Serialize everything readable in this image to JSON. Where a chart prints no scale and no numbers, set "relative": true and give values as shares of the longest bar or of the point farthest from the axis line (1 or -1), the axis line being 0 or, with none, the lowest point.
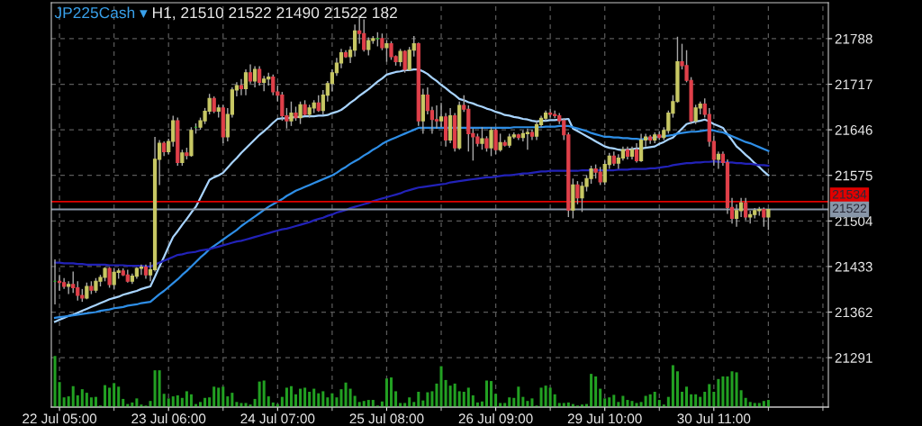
{
  "chart_data": [
    {
      "type": "candlestick",
      "title": "JP225Cash ▾ H1, 21510 21522 21490 21522 182",
      "categories": [
        null,
        "22 Jul 05:00",
        null,
        null,
        null,
        null,
        null,
        null,
        null,
        null,
        null,
        null,
        null,
        null,
        null,
        null,
        null,
        null,
        null,
        null,
        null,
        null,
        null,
        null,
        null,
        "23 Jul 06:00",
        null,
        null,
        null,
        null,
        null,
        null,
        null,
        null,
        null,
        null,
        null,
        null,
        null,
        null,
        null,
        null,
        null,
        null,
        null,
        null,
        null,
        null,
        null,
        "24 Jul 07:00",
        null,
        null,
        null,
        null,
        null,
        null,
        null,
        null,
        null,
        null,
        null,
        null,
        null,
        null,
        null,
        null,
        null,
        null,
        null,
        null,
        null,
        null,
        null,
        "25 Jul 08:00",
        null,
        null,
        null,
        null,
        null,
        null,
        null,
        null,
        null,
        null,
        null,
        null,
        null,
        null,
        null,
        null,
        null,
        null,
        null,
        null,
        null,
        null,
        null,
        "26 Jul 09:00",
        null,
        null,
        null,
        null,
        null,
        null,
        null,
        null,
        null,
        null,
        null,
        null,
        null,
        null,
        null,
        null,
        null,
        null,
        null,
        null,
        null,
        null,
        null,
        "29 Jul 10:00",
        null,
        null,
        null,
        null,
        null,
        null,
        null,
        null,
        null,
        null,
        null,
        null,
        null,
        null,
        null,
        null,
        null,
        null,
        null,
        null,
        null,
        null,
        null,
        "30 Jul 11:00",
        null,
        null,
        null,
        null,
        null,
        null,
        null,
        null,
        null,
        null,
        null,
        null
      ],
      "ohlc": [
        [
          21410,
          21444,
          21374,
          21410
        ],
        [
          21410,
          21420,
          21395,
          21408
        ],
        [
          21408,
          21415,
          21398,
          21402
        ],
        [
          21402,
          21410,
          21390,
          21405
        ],
        [
          21405,
          21425,
          21392,
          21400
        ],
        [
          21400,
          21410,
          21380,
          21388
        ],
        [
          21388,
          21398,
          21378,
          21384
        ],
        [
          21384,
          21408,
          21382,
          21402
        ],
        [
          21402,
          21410,
          21390,
          21396
        ],
        [
          21396,
          21415,
          21392,
          21410
        ],
        [
          21410,
          21420,
          21402,
          21416
        ],
        [
          21416,
          21432,
          21410,
          21430
        ],
        [
          21430,
          21432,
          21400,
          21405
        ],
        [
          21405,
          21430,
          21398,
          21424
        ],
        [
          21424,
          21430,
          21414,
          21426
        ],
        [
          21426,
          21430,
          21418,
          21420
        ],
        [
          21420,
          21428,
          21408,
          21410
        ],
        [
          21410,
          21422,
          21406,
          21418
        ],
        [
          21418,
          21432,
          21414,
          21430
        ],
        [
          21430,
          21436,
          21420,
          21432
        ],
        [
          21432,
          21436,
          21414,
          21420
        ],
        [
          21420,
          21440,
          21410,
          21428
        ],
        [
          21428,
          21635,
          21425,
          21600
        ],
        [
          21600,
          21630,
          21560,
          21625
        ],
        [
          21625,
          21628,
          21605,
          21612
        ],
        [
          21612,
          21632,
          21608,
          21628
        ],
        [
          21628,
          21668,
          21620,
          21660
        ],
        [
          21660,
          21665,
          21590,
          21595
        ],
        [
          21595,
          21615,
          21590,
          21610
        ],
        [
          21610,
          21618,
          21600,
          21606
        ],
        [
          21606,
          21650,
          21604,
          21645
        ],
        [
          21650,
          21656,
          21640,
          21650
        ],
        [
          21650,
          21665,
          21646,
          21660
        ],
        [
          21660,
          21680,
          21655,
          21675
        ],
        [
          21675,
          21702,
          21670,
          21695
        ],
        [
          21695,
          21698,
          21672,
          21675
        ],
        [
          21675,
          21685,
          21665,
          21680
        ],
        [
          21680,
          21685,
          21625,
          21635
        ],
        [
          21635,
          21680,
          21628,
          21670
        ],
        [
          21670,
          21712,
          21665,
          21708
        ],
        [
          21708,
          21720,
          21698,
          21715
        ],
        [
          21715,
          21725,
          21700,
          21710
        ],
        [
          21710,
          21740,
          21700,
          21735
        ],
        [
          21735,
          21748,
          21718,
          21722
        ],
        [
          21722,
          21745,
          21712,
          21740
        ],
        [
          21740,
          21745,
          21715,
          21720
        ],
        [
          21720,
          21730,
          21706,
          21725
        ],
        [
          21725,
          21735,
          21715,
          21728
        ],
        [
          21728,
          21732,
          21700,
          21705
        ],
        [
          21705,
          21715,
          21690,
          21700
        ],
        [
          21700,
          21705,
          21660,
          21668
        ],
        [
          21668,
          21680,
          21648,
          21660
        ],
        [
          21660,
          21690,
          21652,
          21672
        ],
        [
          21672,
          21682,
          21660,
          21665
        ],
        [
          21665,
          21690,
          21655,
          21685
        ],
        [
          21685,
          21692,
          21668,
          21670
        ],
        [
          21670,
          21685,
          21665,
          21680
        ],
        [
          21680,
          21692,
          21672,
          21688
        ],
        [
          21688,
          21700,
          21674,
          21676
        ],
        [
          21676,
          21708,
          21670,
          21700
        ],
        [
          21700,
          21722,
          21690,
          21718
        ],
        [
          21718,
          21740,
          21706,
          21735
        ],
        [
          21735,
          21758,
          21730,
          21750
        ],
        [
          21750,
          21772,
          21742,
          21766
        ],
        [
          21766,
          21770,
          21758,
          21760
        ],
        [
          21760,
          21776,
          21750,
          21770
        ],
        [
          21770,
          21810,
          21760,
          21800
        ],
        [
          21800,
          21824,
          21780,
          21796
        ],
        [
          21796,
          21818,
          21768,
          21771
        ],
        [
          21771,
          21790,
          21762,
          21785
        ],
        [
          21785,
          21792,
          21780,
          21788
        ],
        [
          21788,
          21798,
          21776,
          21788
        ],
        [
          21788,
          21796,
          21770,
          21774
        ],
        [
          21774,
          21786,
          21752,
          21780
        ],
        [
          21780,
          21784,
          21755,
          21760
        ],
        [
          21760,
          21762,
          21746,
          21752
        ],
        [
          21752,
          21772,
          21745,
          21768
        ],
        [
          21768,
          21770,
          21735,
          21740
        ],
        [
          21740,
          21775,
          21738,
          21770
        ],
        [
          21770,
          21792,
          21760,
          21780
        ],
        [
          21780,
          21782,
          21652,
          21660
        ],
        [
          21660,
          21710,
          21640,
          21700
        ],
        [
          21700,
          21712,
          21670,
          21676
        ],
        [
          21676,
          21682,
          21640,
          21662
        ],
        [
          21662,
          21684,
          21648,
          21660
        ],
        [
          21660,
          21688,
          21650,
          21666
        ],
        [
          21666,
          21672,
          21620,
          21630
        ],
        [
          21630,
          21680,
          21625,
          21668
        ],
        [
          21668,
          21672,
          21612,
          21618
        ],
        [
          21618,
          21690,
          21615,
          21684
        ],
        [
          21684,
          21700,
          21674,
          21678
        ],
        [
          21678,
          21684,
          21612,
          21640
        ],
        [
          21640,
          21648,
          21598,
          21635
        ],
        [
          21635,
          21640,
          21620,
          21625
        ],
        [
          21625,
          21650,
          21615,
          21632
        ],
        [
          21632,
          21636,
          21612,
          21618
        ],
        [
          21618,
          21650,
          21605,
          21645
        ],
        [
          21645,
          21648,
          21608,
          21615
        ],
        [
          21615,
          21640,
          21612,
          21626
        ],
        [
          21626,
          21630,
          21620,
          21622
        ],
        [
          21622,
          21640,
          21618,
          21635
        ],
        [
          21635,
          21642,
          21632,
          21638
        ],
        [
          21638,
          21640,
          21630,
          21634
        ],
        [
          21634,
          21645,
          21628,
          21640
        ],
        [
          21640,
          21648,
          21615,
          21642
        ],
        [
          21642,
          21646,
          21630,
          21636
        ],
        [
          21636,
          21660,
          21630,
          21654
        ],
        [
          21654,
          21668,
          21650,
          21664
        ],
        [
          21664,
          21676,
          21660,
          21672
        ],
        [
          21672,
          21678,
          21665,
          21670
        ],
        [
          21670,
          21676,
          21664,
          21668
        ],
        [
          21668,
          21672,
          21655,
          21660
        ],
        [
          21660,
          21664,
          21630,
          21638
        ],
        [
          21638,
          21642,
          21510,
          21521
        ],
        [
          21521,
          21570,
          21508,
          21560
        ],
        [
          21560,
          21566,
          21530,
          21540
        ],
        [
          21540,
          21565,
          21518,
          21558
        ],
        [
          21558,
          21575,
          21550,
          21570
        ],
        [
          21570,
          21590,
          21562,
          21585
        ],
        [
          21585,
          21592,
          21570,
          21580
        ],
        [
          21580,
          21588,
          21560,
          21565
        ],
        [
          21565,
          21598,
          21560,
          21592
        ],
        [
          21592,
          21610,
          21585,
          21605
        ],
        [
          21605,
          21612,
          21590,
          21594
        ],
        [
          21594,
          21608,
          21585,
          21602
        ],
        [
          21602,
          21620,
          21598,
          21615
        ],
        [
          21615,
          21620,
          21600,
          21605
        ],
        [
          21605,
          21620,
          21600,
          21615
        ],
        [
          21615,
          21625,
          21595,
          21598
        ],
        [
          21598,
          21640,
          21596,
          21630
        ],
        [
          21630,
          21640,
          21620,
          21635
        ],
        [
          21635,
          21638,
          21624,
          21630
        ],
        [
          21630,
          21642,
          21625,
          21638
        ],
        [
          21638,
          21644,
          21630,
          21634
        ],
        [
          21634,
          21650,
          21630,
          21645
        ],
        [
          21645,
          21676,
          21640,
          21672
        ],
        [
          21672,
          21700,
          21665,
          21690
        ],
        [
          21690,
          21791,
          21688,
          21752
        ],
        [
          21752,
          21780,
          21740,
          21746
        ],
        [
          21746,
          21770,
          21720,
          21723
        ],
        [
          21723,
          21728,
          21655,
          21660
        ],
        [
          21660,
          21685,
          21655,
          21680
        ],
        [
          21680,
          21690,
          21670,
          21686
        ],
        [
          21686,
          21695,
          21665,
          21670
        ],
        [
          21670,
          21680,
          21620,
          21628
        ],
        [
          21628,
          21636,
          21590,
          21600
        ],
        [
          21600,
          21612,
          21585,
          21608
        ],
        [
          21608,
          21612,
          21590,
          21595
        ],
        [
          21595,
          21600,
          21515,
          21525
        ],
        [
          21525,
          21540,
          21500,
          21508
        ],
        [
          21508,
          21530,
          21495,
          21520
        ],
        [
          21520,
          21540,
          21510,
          21532
        ],
        [
          21532,
          21540,
          21505,
          21510
        ],
        [
          21510,
          21520,
          21500,
          21514
        ],
        [
          21514,
          21524,
          21508,
          21520
        ],
        [
          21520,
          21526,
          21512,
          21522
        ],
        [
          21522,
          21525,
          21495,
          21510
        ],
        [
          21510,
          21522,
          21490,
          21522
        ]
      ],
      "colors": [
        "#20c020",
        "#e0404a",
        "#e0404a",
        "#c8c864",
        "#e0404a",
        "#e0404a",
        "#e0404a",
        "#c8c864",
        "#e0404a",
        "#c8c864",
        "#c8c864",
        "#c8c864",
        "#e0404a",
        "#c8c864",
        "#c8c864",
        "#e0404a",
        "#e0404a",
        "#c8c864",
        "#c8c864",
        "#c8c864",
        "#e0404a",
        "#c8c864",
        "#c8c864",
        "#c8c864",
        "#e0404a",
        "#c8c864",
        "#c8c864",
        "#e0404a",
        "#c8c864",
        "#e0404a",
        "#c8c864",
        "#20c020",
        "#c8c864",
        "#c8c864",
        "#c8c864",
        "#e0404a",
        "#c8c864",
        "#e0404a",
        "#c8c864",
        "#c8c864",
        "#c8c864",
        "#e0404a",
        "#c8c864",
        "#e0404a",
        "#c8c864",
        "#e0404a",
        "#c8c864",
        "#c8c864",
        "#e0404a",
        "#e0404a",
        "#e0404a",
        "#e0404a",
        "#c8c864",
        "#e0404a",
        "#c8c864",
        "#e0404a",
        "#c8c864",
        "#c8c864",
        "#e0404a",
        "#c8c864",
        "#c8c864",
        "#c8c864",
        "#c8c864",
        "#c8c864",
        "#e0404a",
        "#c8c864",
        "#c8c864",
        "#e0404a",
        "#e0404a",
        "#c8c864",
        "#c8c864",
        "#20c020",
        "#e0404a",
        "#c8c864",
        "#e0404a",
        "#e0404a",
        "#c8c864",
        "#e0404a",
        "#c8c864",
        "#c8c864",
        "#e0404a",
        "#c8c864",
        "#e0404a",
        "#e0404a",
        "#e0404a",
        "#c8c864",
        "#e0404a",
        "#c8c864",
        "#e0404a",
        "#c8c864",
        "#e0404a",
        "#e0404a",
        "#e0404a",
        "#e0404a",
        "#c8c864",
        "#e0404a",
        "#c8c864",
        "#e0404a",
        "#c8c864",
        "#e0404a",
        "#c8c864",
        "#c8c864",
        "#e0404a",
        "#c8c864",
        "#c8c864",
        "#e0404a",
        "#c8c864",
        "#c8c864",
        "#c8c864",
        "#e0404a",
        "#e0404a",
        "#e0404a",
        "#e0404a",
        "#e0404a",
        "#c8c864",
        "#e0404a",
        "#c8c864",
        "#c8c864",
        "#c8c864",
        "#e0404a",
        "#e0404a",
        "#c8c864",
        "#c8c864",
        "#e0404a",
        "#c8c864",
        "#c8c864",
        "#e0404a",
        "#c8c864",
        "#e0404a",
        "#c8c864",
        "#c8c864",
        "#e0404a",
        "#c8c864",
        "#e0404a",
        "#c8c864",
        "#c8c864",
        "#c8c864",
        "#c8c864",
        "#e0404a",
        "#e0404a",
        "#e0404a",
        "#c8c864",
        "#c8c864",
        "#e0404a",
        "#e0404a",
        "#e0404a",
        "#c8c864",
        "#e0404a",
        "#e0404a",
        "#e0404a",
        "#c8c864",
        "#c8c864",
        "#e0404a",
        "#c8c864",
        "#c8c864",
        "#c8c864",
        "#e0404a",
        "#c8c864"
      ],
      "series": [
        {
          "type": "line",
          "color": "#a8d4ff",
          "values": [
            21347,
            21350,
            21353,
            21356,
            21358,
            21361,
            21364,
            21367,
            21370,
            21373,
            21376,
            21379,
            21382,
            21384,
            21386,
            21389,
            21391,
            21393,
            21395,
            21398,
            21400,
            21402,
            21417,
            21433,
            21448,
            21464,
            21479,
            21488,
            21498,
            21507,
            21517,
            21526,
            21540,
            21554,
            21568,
            21572,
            21575,
            21579,
            21587,
            21595,
            21602,
            21610,
            21617,
            21624,
            21631,
            21638,
            21644,
            21650,
            21657,
            21663,
            21664,
            21664,
            21665,
            21666,
            21666,
            21667,
            21667,
            21667,
            21668,
            21668,
            21669,
            21672,
            21674,
            21677,
            21682,
            21688,
            21693,
            21699,
            21704,
            21709,
            21715,
            21721,
            21726,
            21732,
            21734,
            21736,
            21737,
            21739,
            21739,
            21740,
            21740,
            21737,
            21733,
            21727,
            21722,
            21716,
            21711,
            21705,
            21700,
            21694,
            21692,
            21689,
            21687,
            21684,
            21682,
            21679,
            21677,
            21674,
            21672,
            21669,
            21668,
            21666,
            21665,
            21663,
            21662,
            21660,
            21659,
            21660,
            21660,
            21661,
            21661,
            21662,
            21662,
            21663,
            21648,
            21644,
            21640,
            21636,
            21632,
            21628,
            21624,
            21620,
            21618,
            21617,
            21615,
            21614,
            21615,
            21616,
            21617,
            21617,
            21618,
            21619,
            21620,
            21624,
            21627,
            21631,
            21634,
            21641,
            21648,
            21655,
            21657,
            21659,
            21660,
            21662,
            21659,
            21655,
            21652,
            21649,
            21639,
            21630,
            21620,
            21614,
            21607,
            21601,
            21594,
            21588,
            21581,
            21575
          ]
        },
        {
          "type": "line",
          "color": "#2e8ee6",
          "values": [
            21353,
            21354,
            21355,
            21356,
            21357,
            21358,
            21359,
            21360,
            21361,
            21362,
            21364,
            21365,
            21366,
            21368,
            21369,
            21370,
            21372,
            21373,
            21374,
            21376,
            21377,
            21378,
            21384,
            21390,
            21395,
            21401,
            21407,
            21413,
            21420,
            21426,
            21433,
            21440,
            21447,
            21453,
            21460,
            21465,
            21470,
            21475,
            21480,
            21485,
            21490,
            21496,
            21501,
            21506,
            21511,
            21516,
            21521,
            21526,
            21530,
            21534,
            21538,
            21543,
            21547,
            21551,
            21554,
            21557,
            21560,
            21563,
            21566,
            21569,
            21572,
            21575,
            21579,
            21584,
            21588,
            21593,
            21597,
            21601,
            21606,
            21610,
            21615,
            21619,
            21624,
            21628,
            21631,
            21634,
            21637,
            21640,
            21643,
            21646,
            21649,
            21649,
            21649,
            21649,
            21649,
            21649,
            21649,
            21649,
            21649,
            21649,
            21649,
            21649,
            21649,
            21649,
            21649,
            21649,
            21649,
            21649,
            21649,
            21649,
            21649,
            21650,
            21650,
            21650,
            21650,
            21650,
            21650,
            21650,
            21651,
            21651,
            21651,
            21652,
            21652,
            21652,
            21650,
            21648,
            21646,
            21644,
            21641,
            21639,
            21637,
            21635,
            21635,
            21634,
            21634,
            21633,
            21633,
            21632,
            21632,
            21631,
            21632,
            21633,
            21634,
            21635,
            21636,
            21637,
            21638,
            21640,
            21641,
            21642,
            21643,
            21643,
            21644,
            21645,
            21646,
            21645,
            21643,
            21642,
            21639,
            21636,
            21633,
            21630,
            21627,
            21625,
            21622,
            21619,
            21616,
            21613
          ]
        },
        {
          "type": "line",
          "color": "#2222b8",
          "values": [
            21439,
            21439,
            21438,
            21438,
            21438,
            21437,
            21437,
            21436,
            21436,
            21436,
            21436,
            21436,
            21435,
            21435,
            21435,
            21435,
            21434,
            21434,
            21434,
            21434,
            21433,
            21433,
            21436,
            21439,
            21442,
            21445,
            21448,
            21451,
            21452,
            21454,
            21455,
            21456,
            21458,
            21459,
            21460,
            21462,
            21464,
            21466,
            21468,
            21470,
            21472,
            21473,
            21475,
            21477,
            21479,
            21481,
            21483,
            21485,
            21487,
            21489,
            21491,
            21492,
            21494,
            21496,
            21498,
            21500,
            21502,
            21505,
            21507,
            21509,
            21512,
            21514,
            21517,
            21519,
            21521,
            21524,
            21526,
            21528,
            21530,
            21532,
            21535,
            21537,
            21539,
            21541,
            21543,
            21545,
            21547,
            21550,
            21552,
            21554,
            21556,
            21557,
            21558,
            21559,
            21560,
            21561,
            21562,
            21564,
            21565,
            21566,
            21567,
            21568,
            21569,
            21570,
            21571,
            21572,
            21572,
            21573,
            21574,
            21575,
            21575,
            21576,
            21577,
            21578,
            21578,
            21579,
            21580,
            21581,
            21581,
            21582,
            21582,
            21582,
            21582,
            21582,
            21582,
            21582,
            21583,
            21583,
            21583,
            21583,
            21583,
            21583,
            21583,
            21583,
            21584,
            21584,
            21584,
            21585,
            21585,
            21585,
            21585,
            21586,
            21586,
            21587,
            21588,
            21589,
            21591,
            21592,
            21593,
            21594,
            21594,
            21595,
            21595,
            21596,
            21596,
            21597,
            21596,
            21596,
            21595,
            21595,
            21594,
            21594,
            21593,
            21593,
            21592,
            21591,
            21591,
            21590
          ]
        }
      ],
      "ylim": [
        21214,
        21844
      ],
      "yticks": [
        21291,
        21362,
        21433,
        21504,
        21575,
        21646,
        21717,
        21788
      ],
      "grid": true,
      "ref_lines": [
        {
          "axis": "y",
          "value": 21534,
          "label": "21534",
          "color": "#e00000"
        },
        {
          "axis": "y",
          "value": 21522,
          "label": "21522",
          "color": "#8896a8"
        }
      ]
    },
    {
      "type": "bar",
      "relative": true,
      "color": "#22a022",
      "categories": [
        null,
        null,
        null,
        null,
        null,
        null,
        null,
        null,
        null,
        null,
        null,
        null,
        null,
        null,
        null,
        null,
        null,
        null,
        null,
        null,
        null,
        null,
        null,
        null,
        null,
        null,
        null,
        null,
        null,
        null,
        null,
        null,
        null,
        null,
        null,
        null,
        null,
        null,
        null,
        null,
        null,
        null,
        null,
        null,
        null,
        null,
        null,
        null,
        null,
        null,
        null,
        null,
        null,
        null,
        null,
        null,
        null,
        null,
        null,
        null,
        null,
        null,
        null,
        null,
        null,
        null,
        null,
        null,
        null,
        null,
        null,
        null,
        null,
        null,
        null,
        null,
        null,
        null,
        null,
        null,
        null,
        null,
        null,
        null,
        null,
        null,
        null,
        null,
        null,
        null,
        null,
        null,
        null,
        null,
        null,
        null,
        null,
        null,
        null,
        null,
        null,
        null,
        null,
        null,
        null,
        null,
        null,
        null,
        null,
        null,
        null,
        null,
        null,
        null,
        null,
        null,
        null,
        null,
        null,
        null,
        null,
        null,
        null,
        null,
        null,
        null,
        null,
        null,
        null,
        null,
        null,
        null,
        null,
        null,
        null,
        null,
        null,
        null,
        null,
        null,
        null,
        null,
        null,
        null,
        null,
        null,
        null,
        null,
        null,
        null,
        null,
        null,
        null,
        null,
        null,
        null,
        null,
        null
      ],
      "values": [
        1.0,
        0.49,
        0.19,
        0.21,
        0.41,
        0.23,
        0.35,
        0.28,
        0.19,
        0.2,
        0.03,
        0.43,
        0.38,
        0.47,
        0.4,
        0.16,
        0.06,
        0.09,
        0.17,
        0.05,
        0.03,
        0.12,
        0.72,
        0.72,
        0.26,
        0.17,
        0.21,
        0.23,
        0.18,
        0.31,
        0.25,
        0.06,
        0.1,
        0.18,
        0.19,
        0.4,
        0.38,
        0.4,
        0.21,
        0.28,
        0.1,
        0.08,
        0.08,
        0.05,
        0.16,
        0.5,
        0.52,
        0.21,
        0.09,
        0.06,
        0.2,
        0.38,
        0.41,
        0.25,
        0.36,
        0.38,
        0.3,
        0.36,
        0.27,
        0.31,
        0.19,
        0.27,
        0.19,
        0.35,
        0.48,
        0.36,
        0.22,
        0.1,
        0.12,
        0.14,
        0.14,
        0.03,
        0.11,
        0.56,
        0.58,
        0.31,
        0.08,
        0.08,
        0.19,
        0.1,
        0.3,
        0.13,
        0.29,
        0.31,
        0.46,
        0.8,
        0.53,
        0.42,
        0.46,
        0.31,
        0.3,
        0.38,
        0.23,
        0.09,
        0.11,
        0.52,
        0.51,
        0.26,
        0.08,
        0.08,
        0.19,
        0.18,
        0.4,
        0.2,
        0.12,
        0.17,
        0.03,
        0.38,
        0.42,
        0.38,
        0.25,
        0.08,
        0.08,
        0.09,
        0.06,
        0.03,
        0.05,
        0.06,
        0.65,
        0.6,
        0.36,
        0.17,
        0.19,
        0.24,
        0.1,
        0.22,
        0.14,
        0.12,
        0.08,
        0.1,
        0.22,
        0.25,
        0.3,
        0.14,
        0.05,
        0.2,
        0.82,
        0.7,
        0.3,
        0.4,
        0.25,
        0.25,
        0.2,
        0.3,
        0.45,
        0.3,
        0.55,
        0.6,
        0.6,
        0.7,
        0.68,
        0.33,
        0.18,
        0.1,
        0.08,
        0.08,
        0.12,
        0.14
      ]
    }
  ]
}
